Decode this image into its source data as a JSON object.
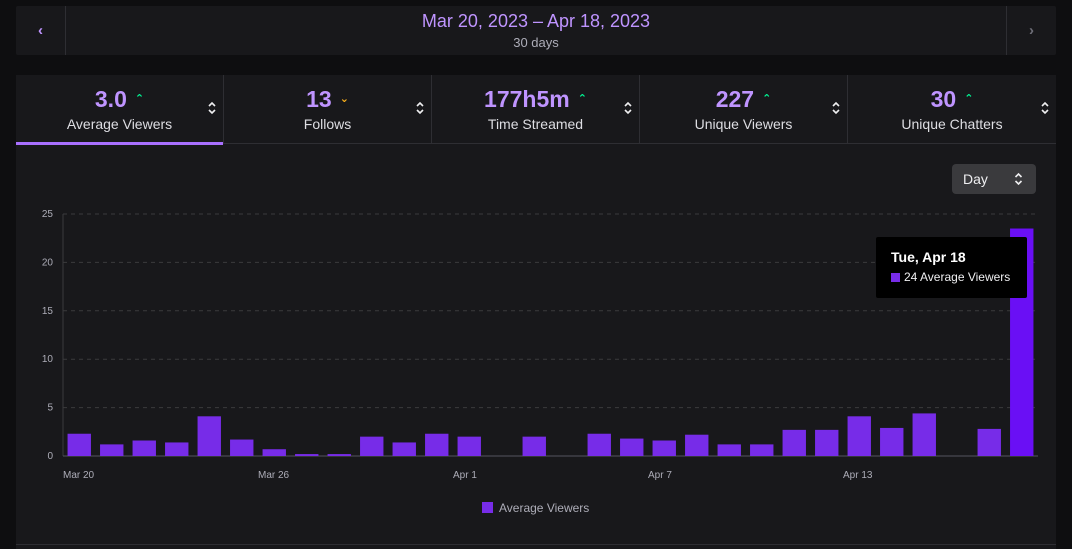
{
  "date_range": {
    "prev_label": "‹",
    "next_label": "›",
    "range": "Mar 20, 2023 – Apr 18, 2023",
    "days": "30 days"
  },
  "stats": [
    {
      "value": "3.0",
      "label": "Average Viewers",
      "trend": "up",
      "trend_glyph": "⌃",
      "active": true
    },
    {
      "value": "13",
      "label": "Follows",
      "trend": "down",
      "trend_glyph": "⌄",
      "active": false
    },
    {
      "value": "177h5m",
      "label": "Time Streamed",
      "trend": "up",
      "trend_glyph": "⌃",
      "active": false
    },
    {
      "value": "227",
      "label": "Unique Viewers",
      "trend": "up",
      "trend_glyph": "⌃",
      "active": false
    },
    {
      "value": "30",
      "label": "Unique Chatters",
      "trend": "up",
      "trend_glyph": "⌃",
      "active": false
    }
  ],
  "interval_select": {
    "value": "Day"
  },
  "tooltip": {
    "title": "Tue, Apr 18",
    "text": "24 Average Viewers"
  },
  "colors": {
    "bar": "#772ce8",
    "bar_highlight": "#6a0ff5",
    "accent": "#bf94ff",
    "trend_up": "#00f593",
    "trend_down": "#ffb31a"
  },
  "chart_data": {
    "type": "bar",
    "categories": [
      "Mar 20",
      "Mar 21",
      "Mar 22",
      "Mar 23",
      "Mar 24",
      "Mar 25",
      "Mar 26",
      "Mar 27",
      "Mar 28",
      "Mar 29",
      "Mar 30",
      "Mar 31",
      "Apr 1",
      "Apr 2",
      "Apr 3",
      "Apr 4",
      "Apr 5",
      "Apr 6",
      "Apr 7",
      "Apr 8",
      "Apr 9",
      "Apr 10",
      "Apr 11",
      "Apr 12",
      "Apr 13",
      "Apr 14",
      "Apr 15",
      "Apr 16",
      "Apr 17",
      "Apr 18"
    ],
    "x_tick_labels": [
      "Mar 20",
      "Mar 26",
      "Apr 1",
      "Apr 7",
      "Apr 13"
    ],
    "series": [
      {
        "name": "Average Viewers",
        "values": [
          2.3,
          1.2,
          1.6,
          1.4,
          4.1,
          1.7,
          0.7,
          0.2,
          0.2,
          2.0,
          1.4,
          2.3,
          2.0,
          0,
          2.0,
          0,
          2.3,
          1.8,
          1.6,
          2.2,
          1.2,
          1.2,
          2.7,
          2.7,
          4.1,
          2.9,
          4.4,
          0,
          2.8,
          23.5
        ]
      }
    ],
    "highlight_index": 29,
    "ylim": [
      0,
      25
    ],
    "y_ticks": [
      0,
      5,
      10,
      15,
      20,
      25
    ],
    "grid": true,
    "legend": "bottom-center"
  }
}
